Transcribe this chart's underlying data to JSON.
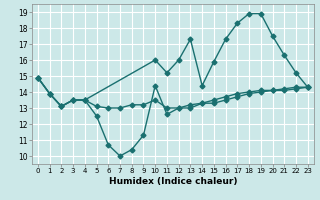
{
  "title": "",
  "xlabel": "Humidex (Indice chaleur)",
  "bg_color": "#cce8e8",
  "line_color": "#1a7070",
  "grid_color": "#ffffff",
  "xlim": [
    -0.5,
    23.5
  ],
  "ylim": [
    9.5,
    19.5
  ],
  "xticks": [
    0,
    1,
    2,
    3,
    4,
    5,
    6,
    7,
    8,
    9,
    10,
    11,
    12,
    13,
    14,
    15,
    16,
    17,
    18,
    19,
    20,
    21,
    22,
    23
  ],
  "yticks": [
    10,
    11,
    12,
    13,
    14,
    15,
    16,
    17,
    18,
    19
  ],
  "line1_x": [
    0,
    1,
    2,
    3,
    4,
    5,
    6,
    7,
    8,
    9,
    10,
    11,
    12,
    13,
    14,
    15,
    16,
    17,
    18,
    19,
    20,
    21,
    22,
    23
  ],
  "line1_y": [
    14.9,
    13.9,
    13.1,
    13.5,
    13.5,
    12.5,
    10.7,
    10.0,
    10.4,
    11.3,
    14.4,
    12.6,
    13.0,
    13.0,
    13.3,
    13.3,
    13.5,
    13.7,
    13.9,
    14.0,
    14.1,
    14.1,
    14.2,
    14.3
  ],
  "line2_x": [
    0,
    1,
    2,
    3,
    4,
    10,
    11,
    12,
    13,
    14,
    15,
    16,
    17,
    18,
    19,
    20,
    21,
    22,
    23
  ],
  "line2_y": [
    14.9,
    13.9,
    13.1,
    13.5,
    13.5,
    16.0,
    15.2,
    16.0,
    17.3,
    14.4,
    15.9,
    17.3,
    18.3,
    18.9,
    18.9,
    17.5,
    16.3,
    15.2,
    14.3
  ],
  "line3_x": [
    0,
    1,
    2,
    3,
    4,
    5,
    6,
    7,
    8,
    9,
    10,
    11,
    12,
    13,
    14,
    15,
    16,
    17,
    18,
    19,
    20,
    21,
    22,
    23
  ],
  "line3_y": [
    14.9,
    13.9,
    13.1,
    13.5,
    13.5,
    13.1,
    13.0,
    13.0,
    13.2,
    13.2,
    13.5,
    13.0,
    13.0,
    13.2,
    13.3,
    13.5,
    13.7,
    13.9,
    14.0,
    14.1,
    14.1,
    14.2,
    14.3,
    14.3
  ],
  "marker": "D",
  "markersize": 2.5,
  "linewidth": 1.0
}
